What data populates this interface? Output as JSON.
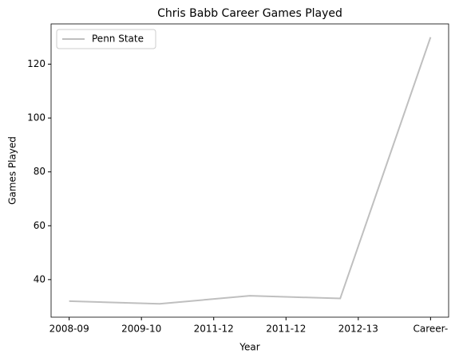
{
  "chart_data": {
    "type": "line",
    "title": "Chris Babb Career Games Played",
    "xlabel": "Year",
    "ylabel": "Games Played",
    "x": [
      0,
      1.25,
      2.5,
      3.75,
      5
    ],
    "series": [
      {
        "name": "Penn State",
        "color": "#bfbfbf",
        "values": [
          32,
          31,
          34,
          33,
          130
        ]
      }
    ],
    "xlim": [
      -0.25,
      5.25
    ],
    "xticks": [
      {
        "value": 0,
        "label": "2008-09"
      },
      {
        "value": 1,
        "label": "2009-10"
      },
      {
        "value": 2,
        "label": "2011-12"
      },
      {
        "value": 3,
        "label": "2011-12"
      },
      {
        "value": 4,
        "label": "2012-13"
      },
      {
        "value": 5,
        "label": "Career-"
      }
    ],
    "ylim": [
      26.05,
      134.95
    ],
    "yticks": [
      40,
      60,
      80,
      100,
      120
    ],
    "grid": false,
    "legend": "upper left"
  }
}
